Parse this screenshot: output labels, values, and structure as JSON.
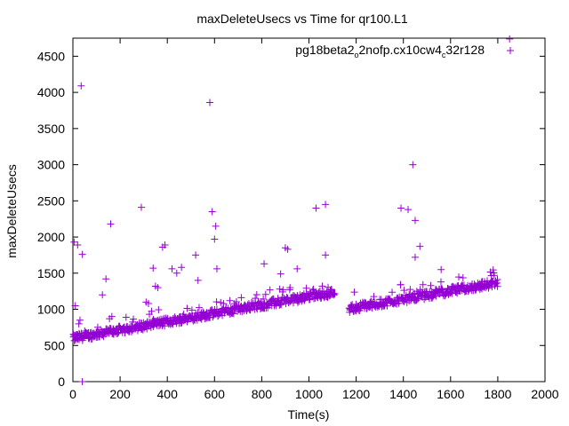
{
  "chart_data": {
    "type": "scatter",
    "title": "maxDeleteUsecs vs Time for qr100.L1",
    "xlabel": "Time(s)",
    "ylabel": "maxDeleteUsecs",
    "xlim": [
      0,
      2000
    ],
    "ylim": [
      0,
      4750
    ],
    "xticks": [
      0,
      200,
      400,
      600,
      800,
      1000,
      1200,
      1400,
      1600,
      1800,
      2000
    ],
    "yticks": [
      0,
      500,
      1000,
      1500,
      2000,
      2500,
      3000,
      3500,
      4000,
      4500
    ],
    "marker": "+",
    "color": "#9400d3",
    "grid": false,
    "legend_position": "top-right",
    "series": [
      {
        "name": "pg18beta2_o2nofp.cx10cw4_c32r128",
        "legend_parts": [
          {
            "text": "pg18beta2",
            "sub": false
          },
          {
            "text": "o",
            "sub": true
          },
          {
            "text": "2nofp.cx10cw4",
            "sub": false
          },
          {
            "text": "c",
            "sub": true
          },
          {
            "text": "32r128",
            "sub": false
          }
        ],
        "trend": [
          {
            "x0": 0,
            "x1": 1110,
            "y0": 600,
            "y1": 1240
          },
          {
            "x0": 1170,
            "x1": 1800,
            "y0": 1010,
            "y1": 1370
          }
        ],
        "outliers": [
          [
            5,
            1930
          ],
          [
            10,
            1050
          ],
          [
            20,
            1890
          ],
          [
            25,
            800
          ],
          [
            30,
            850
          ],
          [
            35,
            4090
          ],
          [
            40,
            1760
          ],
          [
            40,
            0
          ],
          [
            50,
            700
          ],
          [
            125,
            1200
          ],
          [
            140,
            1420
          ],
          [
            155,
            870
          ],
          [
            160,
            2180
          ],
          [
            165,
            900
          ],
          [
            290,
            2410
          ],
          [
            310,
            1100
          ],
          [
            320,
            1080
          ],
          [
            340,
            1570
          ],
          [
            350,
            1320
          ],
          [
            360,
            1300
          ],
          [
            380,
            1860
          ],
          [
            390,
            1890
          ],
          [
            420,
            1560
          ],
          [
            440,
            1500
          ],
          [
            460,
            1580
          ],
          [
            520,
            1750
          ],
          [
            530,
            1400
          ],
          [
            580,
            3860
          ],
          [
            590,
            2350
          ],
          [
            600,
            1970
          ],
          [
            605,
            2150
          ],
          [
            610,
            1560
          ],
          [
            810,
            1630
          ],
          [
            880,
            1490
          ],
          [
            900,
            1850
          ],
          [
            910,
            1830
          ],
          [
            920,
            1300
          ],
          [
            950,
            1560
          ],
          [
            1030,
            2400
          ],
          [
            1070,
            2450
          ],
          [
            1070,
            1750
          ],
          [
            1390,
            2400
          ],
          [
            1420,
            2380
          ],
          [
            1440,
            3000
          ],
          [
            1450,
            2230
          ],
          [
            1450,
            1720
          ],
          [
            1470,
            1870
          ],
          [
            1560,
            1550
          ],
          [
            1850,
            4740
          ]
        ]
      }
    ]
  }
}
